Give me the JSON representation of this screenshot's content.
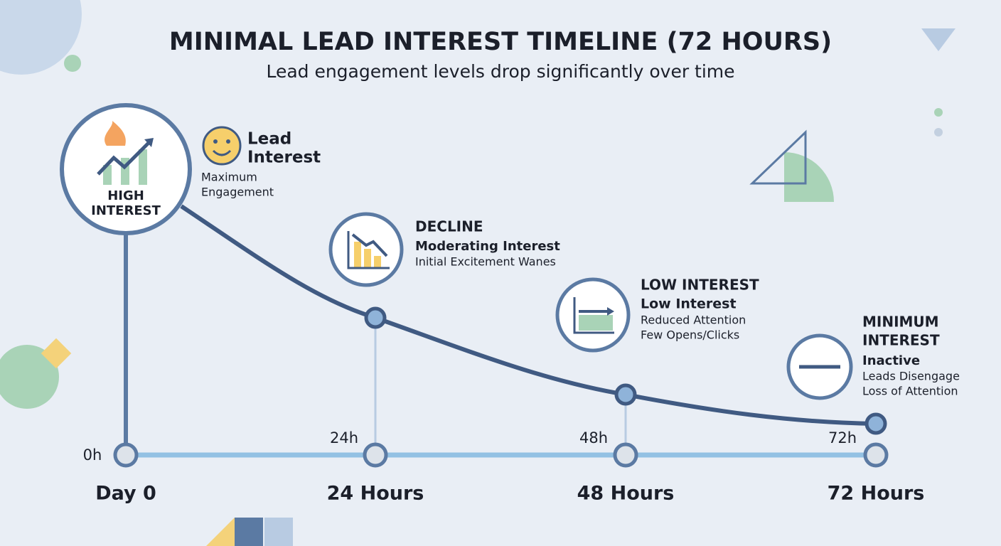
{
  "title": "MINIMAL LEAD INTEREST TIMELINE (72 HOURS)",
  "subtitle": "Lead engagement levels drop significantly over time",
  "stages": [
    {
      "badge": [
        "HIGH",
        "INTEREST"
      ],
      "heading": [
        "Lead",
        "Interest"
      ],
      "details": [
        "Maximum",
        "Engagement"
      ],
      "tick": "0h",
      "label": "Day 0"
    },
    {
      "heading": [
        "DECLINE"
      ],
      "subheading": "Moderating Interest",
      "details": [
        "Initial Excitement Wanes"
      ],
      "tick": "24h",
      "label": "24 Hours"
    },
    {
      "heading": [
        "LOW INTEREST"
      ],
      "subheading": "Low Interest",
      "details": [
        "Reduced Attention",
        "Few Opens/Clicks"
      ],
      "tick": "48h",
      "label": "48 Hours"
    },
    {
      "heading": [
        "MINIMUM",
        "INTEREST"
      ],
      "subheading": "Inactive",
      "details": [
        "Leads Disengage",
        "Loss of Attention"
      ],
      "tick": "72h",
      "label": "72 Hours"
    }
  ]
}
